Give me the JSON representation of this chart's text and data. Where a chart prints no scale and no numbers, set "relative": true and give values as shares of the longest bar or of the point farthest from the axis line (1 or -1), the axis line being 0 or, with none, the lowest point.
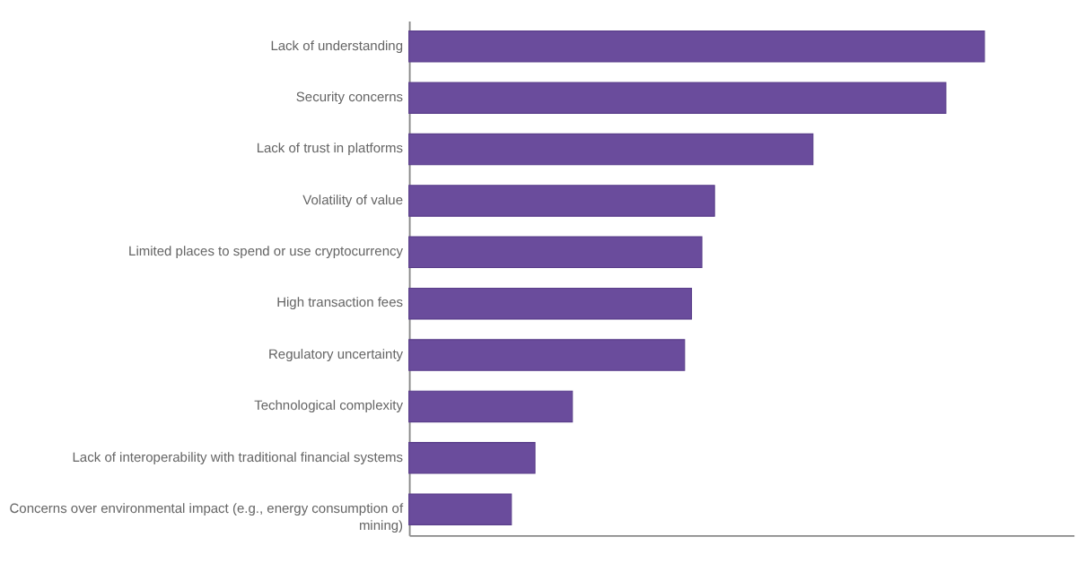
{
  "chart_data": {
    "type": "bar",
    "orientation": "horizontal",
    "relative": true,
    "categories": [
      "Lack of understanding",
      "Security concerns",
      "Lack of trust in platforms",
      "Volatility of value",
      "Limited places to spend or use cryptocurrency",
      "High transaction fees",
      "Regulatory uncertainty",
      "Technological complexity",
      "Lack of interoperability with traditional financial systems",
      "Concerns over environmental impact (e.g., energy consumption of mining)"
    ],
    "values": [
      1,
      0.933,
      0.702,
      0.531,
      0.509,
      0.491,
      0.479,
      0.284,
      0.219,
      0.178
    ],
    "color": "#6a4c9c"
  }
}
